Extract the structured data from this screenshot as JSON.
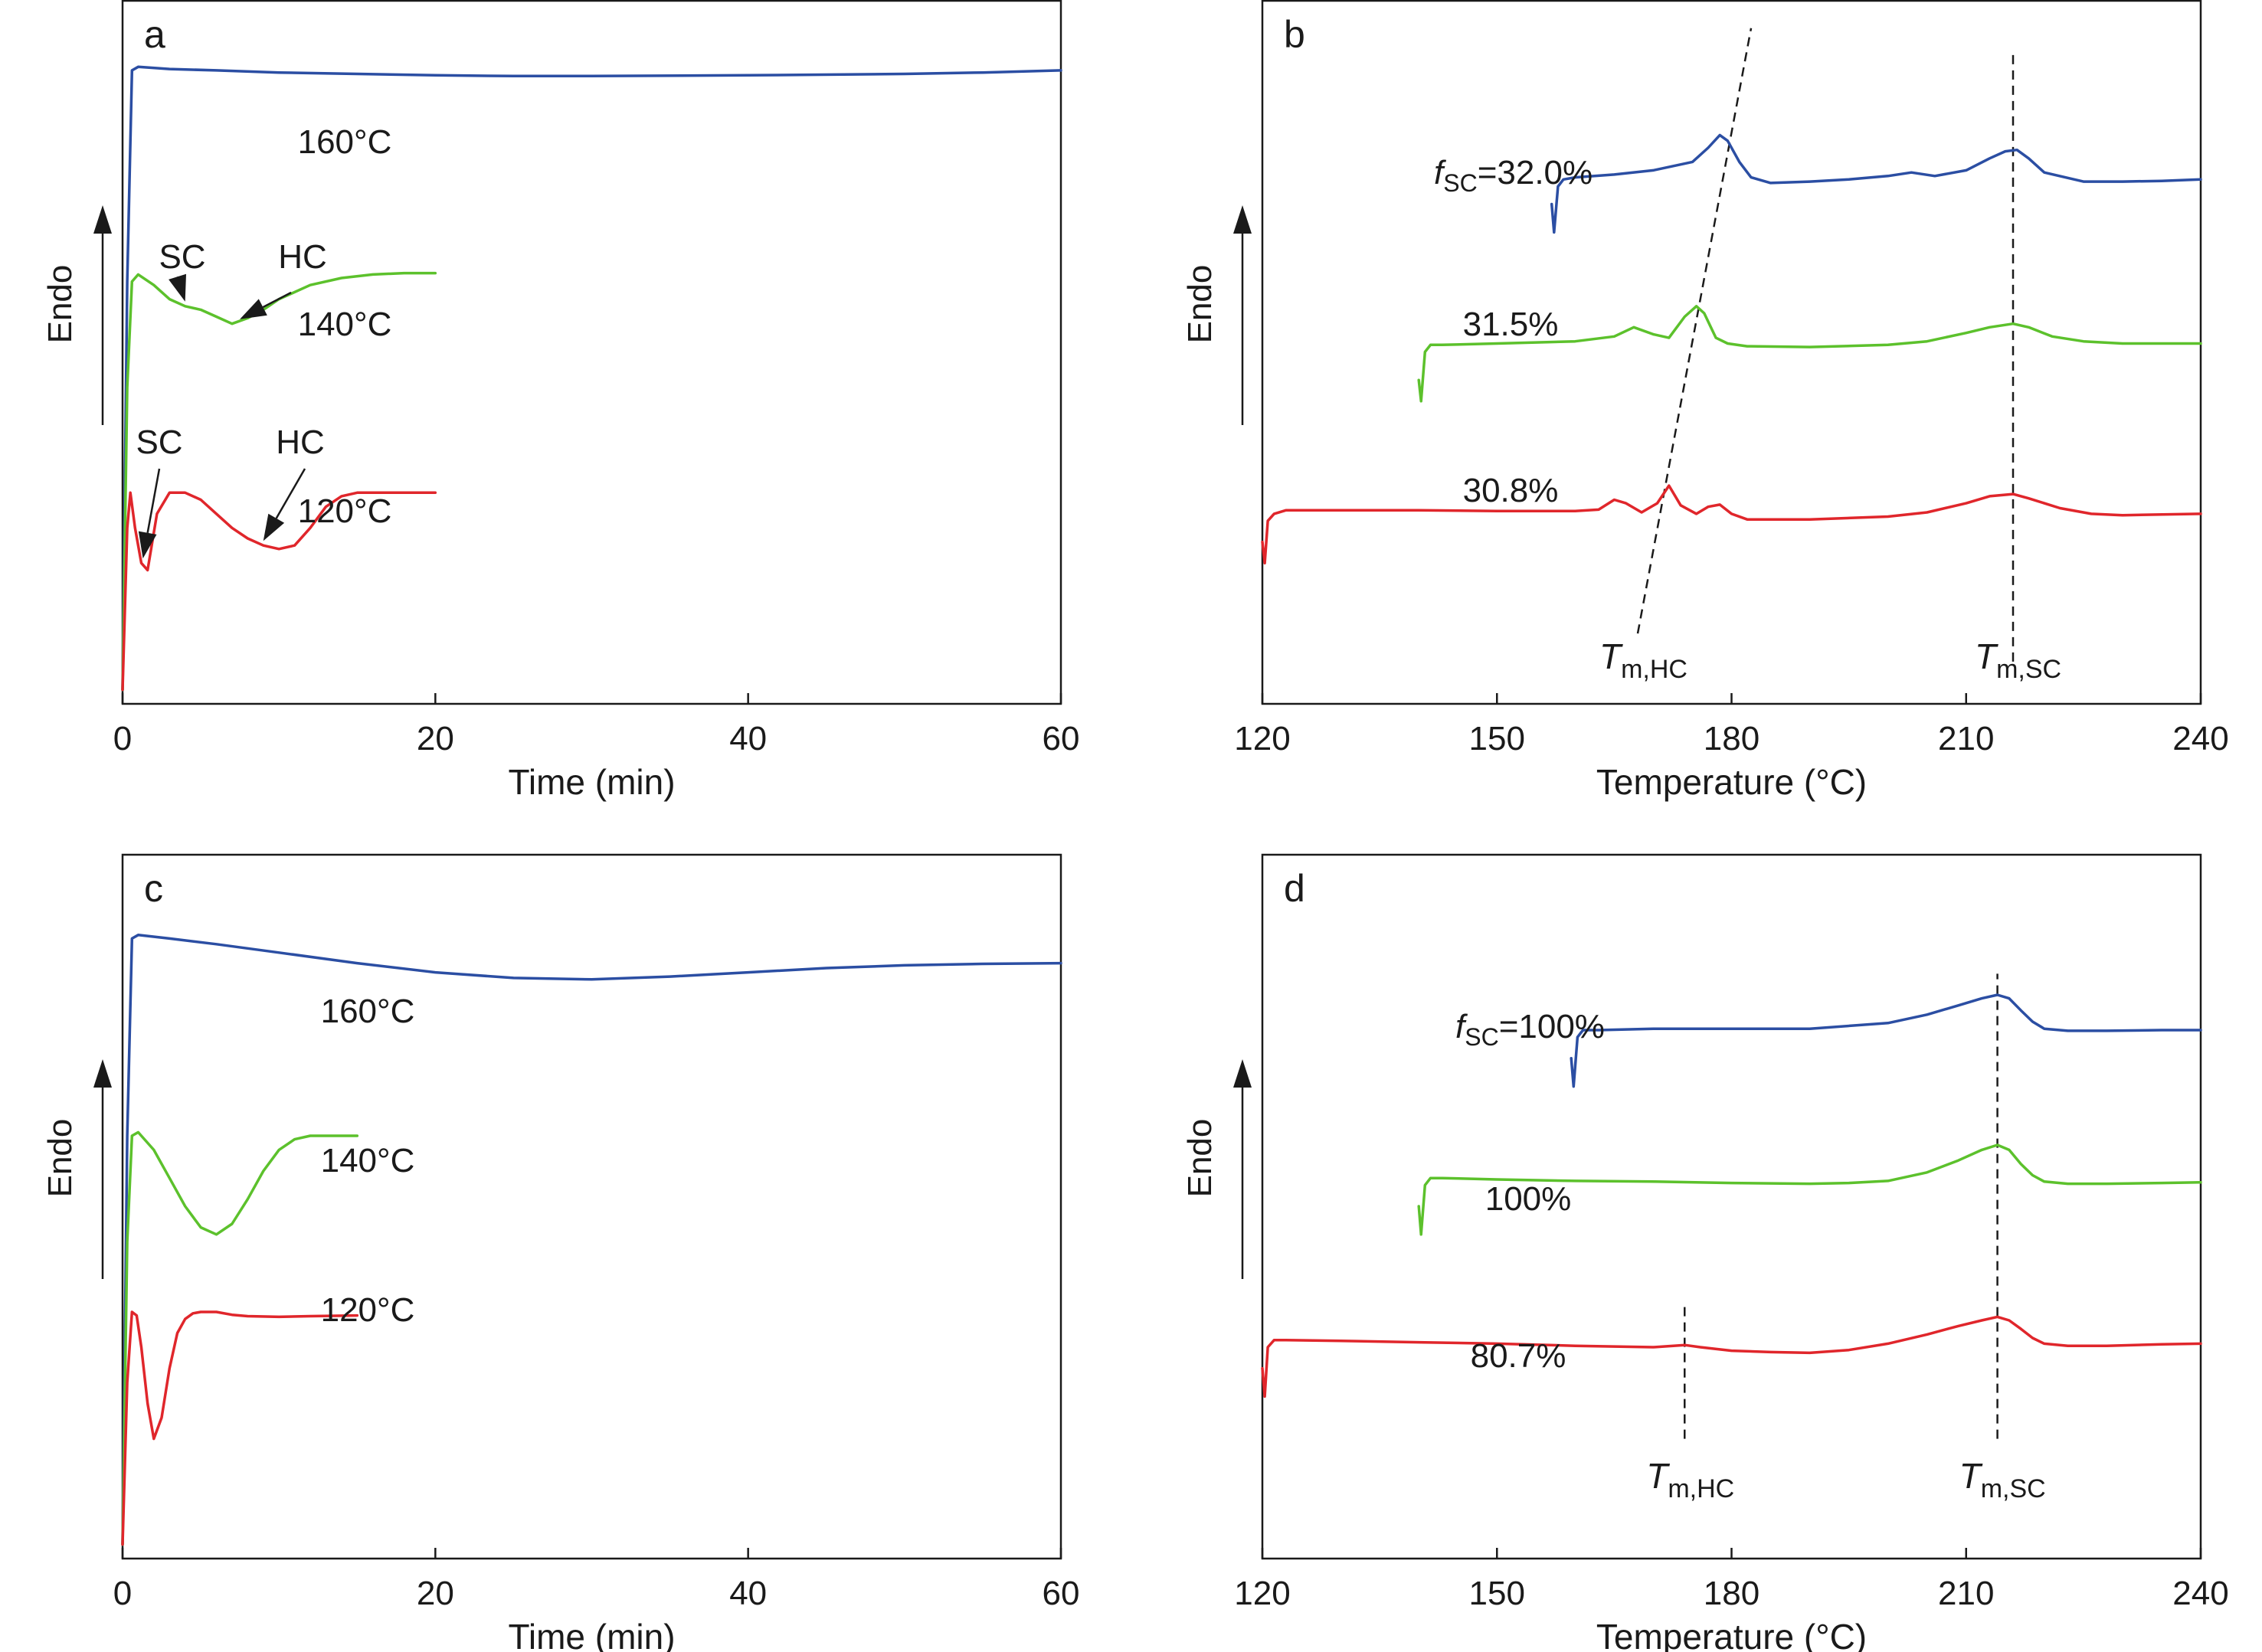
{
  "chart_data": [
    {
      "panel": "a",
      "type": "line",
      "xlabel": "Time (min)",
      "ylabel": "Endo",
      "xlim": [
        0,
        60
      ],
      "xticks": [
        "0",
        "20",
        "40",
        "60"
      ],
      "series": [
        {
          "name": "160°C",
          "label": "160°C",
          "color": "#2b4ea3",
          "x": [
            0,
            0.3,
            0.6,
            1,
            3,
            6,
            10,
            15,
            20,
            25,
            30,
            40,
            50,
            55,
            60
          ],
          "y": [
            0.02,
            0.6,
            0.9,
            0.905,
            0.902,
            0.9,
            0.897,
            0.895,
            0.893,
            0.892,
            0.892,
            0.893,
            0.895,
            0.897,
            0.9
          ]
        },
        {
          "name": "140°C",
          "label": "140°C",
          "color": "#5cc12c",
          "x": [
            0,
            0.3,
            0.6,
            1,
            2,
            3,
            4,
            5,
            6,
            7,
            8,
            9,
            10,
            12,
            14,
            16,
            18,
            20
          ],
          "y": [
            0.02,
            0.45,
            0.6,
            0.61,
            0.595,
            0.575,
            0.565,
            0.56,
            0.55,
            0.54,
            0.548,
            0.56,
            0.575,
            0.595,
            0.605,
            0.61,
            0.612,
            0.612
          ]
        },
        {
          "name": "120°C",
          "label": "120°C",
          "color": "#e0262b",
          "x": [
            0,
            0.3,
            0.5,
            0.8,
            1.2,
            1.6,
            2.2,
            3,
            4,
            5,
            6,
            7,
            8,
            9,
            10,
            11,
            12,
            13,
            14,
            15,
            17,
            20
          ],
          "y": [
            0.02,
            0.25,
            0.3,
            0.25,
            0.2,
            0.19,
            0.27,
            0.3,
            0.3,
            0.29,
            0.27,
            0.25,
            0.235,
            0.225,
            0.22,
            0.225,
            0.25,
            0.28,
            0.295,
            0.3,
            0.3,
            0.3
          ]
        }
      ],
      "annotations": [
        {
          "text": "SC",
          "x": 4,
          "y": 0.565
        },
        {
          "text": "HC",
          "x": 7.5,
          "y": 0.54
        },
        {
          "text": "SC",
          "x": 1.3,
          "y": 0.2
        },
        {
          "text": "HC",
          "x": 9,
          "y": 0.225
        }
      ]
    },
    {
      "panel": "b",
      "type": "line",
      "xlabel": "Temperature (°C)",
      "ylabel": "Endo",
      "xlim": [
        120,
        240
      ],
      "xticks": [
        "120",
        "150",
        "180",
        "210",
        "240"
      ],
      "series": [
        {
          "name": "32.0%",
          "label_prefix": "f",
          "label_sub": "SC",
          "label": "=32.0%",
          "color": "#2b4ea3",
          "x": [
            157,
            157.3,
            157.8,
            158.5,
            160,
            165,
            170,
            175,
            177,
            178.5,
            179.5,
            181,
            182.5,
            185,
            190,
            195,
            200,
            203,
            206,
            210,
            213,
            215,
            216.5,
            218,
            220,
            225,
            230,
            235,
            240
          ],
          "y": [
            0.71,
            0.67,
            0.735,
            0.745,
            0.748,
            0.752,
            0.758,
            0.77,
            0.79,
            0.808,
            0.8,
            0.77,
            0.748,
            0.74,
            0.742,
            0.745,
            0.75,
            0.755,
            0.75,
            0.758,
            0.775,
            0.785,
            0.787,
            0.775,
            0.755,
            0.742,
            0.742,
            0.743,
            0.745
          ]
        },
        {
          "name": "31.5%",
          "label": "31.5%",
          "color": "#5cc12c",
          "x": [
            140,
            140.3,
            140.8,
            141.5,
            143,
            150,
            160,
            165,
            167.5,
            170,
            172,
            174,
            175.5,
            176.5,
            178,
            179.5,
            182,
            190,
            200,
            205,
            210,
            213,
            216,
            218,
            221,
            225,
            230,
            240
          ],
          "y": [
            0.46,
            0.43,
            0.5,
            0.51,
            0.51,
            0.512,
            0.515,
            0.522,
            0.535,
            0.525,
            0.52,
            0.55,
            0.565,
            0.555,
            0.52,
            0.512,
            0.508,
            0.507,
            0.51,
            0.515,
            0.527,
            0.535,
            0.54,
            0.535,
            0.522,
            0.515,
            0.512,
            0.512
          ]
        },
        {
          "name": "30.8%",
          "label": "30.8%",
          "color": "#e0262b",
          "x": [
            120,
            120.3,
            120.7,
            121.5,
            123,
            130,
            140,
            150,
            160,
            163,
            165,
            166.5,
            168.5,
            170.5,
            172,
            173.5,
            175.5,
            177,
            178.5,
            180,
            182,
            190,
            200,
            205,
            210,
            213,
            216,
            218,
            222,
            226,
            230,
            240
          ],
          "y": [
            0.23,
            0.2,
            0.26,
            0.27,
            0.275,
            0.275,
            0.275,
            0.274,
            0.274,
            0.276,
            0.29,
            0.285,
            0.272,
            0.285,
            0.31,
            0.282,
            0.27,
            0.28,
            0.283,
            0.27,
            0.262,
            0.262,
            0.266,
            0.272,
            0.285,
            0.295,
            0.298,
            0.292,
            0.278,
            0.27,
            0.268,
            0.27
          ]
        }
      ],
      "guides": [
        {
          "kind": "dashed-line",
          "x1": 168,
          "y1": 0.1,
          "x2": 182.5,
          "y2": 0.96
        },
        {
          "kind": "dashed-line",
          "x1": 216,
          "y1": 0.06,
          "x2": 216,
          "y2": 0.93
        }
      ],
      "annotations": [
        {
          "main": "T",
          "sub": "m,HC",
          "x": 168,
          "y": 0.05
        },
        {
          "main": "T",
          "sub": "m,SC",
          "x": 216,
          "y": 0.05
        }
      ]
    },
    {
      "panel": "c",
      "type": "line",
      "xlabel": "Time (min)",
      "ylabel": "Endo",
      "xlim": [
        0,
        60
      ],
      "xticks": [
        "0",
        "20",
        "40",
        "60"
      ],
      "series": [
        {
          "name": "160°C",
          "label": "160°C",
          "color": "#2b4ea3",
          "x": [
            0,
            0.3,
            0.6,
            1,
            3,
            6,
            10,
            15,
            20,
            25,
            30,
            35,
            40,
            45,
            50,
            55,
            60
          ],
          "y": [
            0.02,
            0.6,
            0.88,
            0.885,
            0.88,
            0.872,
            0.86,
            0.845,
            0.832,
            0.824,
            0.822,
            0.826,
            0.832,
            0.838,
            0.842,
            0.844,
            0.845
          ]
        },
        {
          "name": "140°C",
          "label": "140°C",
          "color": "#5cc12c",
          "x": [
            0,
            0.3,
            0.6,
            1,
            2,
            3,
            4,
            5,
            6,
            7,
            8,
            9,
            10,
            11,
            12,
            13,
            14,
            15
          ],
          "y": [
            0.02,
            0.45,
            0.6,
            0.605,
            0.58,
            0.54,
            0.5,
            0.47,
            0.46,
            0.475,
            0.51,
            0.55,
            0.58,
            0.595,
            0.6,
            0.6,
            0.6,
            0.6
          ]
        },
        {
          "name": "120°C",
          "label": "120°C",
          "color": "#e0262b",
          "x": [
            0,
            0.3,
            0.6,
            0.9,
            1.2,
            1.6,
            2,
            2.5,
            3,
            3.5,
            4,
            4.5,
            5,
            6,
            7,
            8,
            10,
            12,
            15
          ],
          "y": [
            0.02,
            0.25,
            0.35,
            0.345,
            0.3,
            0.22,
            0.17,
            0.2,
            0.27,
            0.32,
            0.34,
            0.348,
            0.35,
            0.35,
            0.346,
            0.344,
            0.343,
            0.344,
            0.345
          ]
        }
      ],
      "annotations": []
    },
    {
      "panel": "d",
      "type": "line",
      "xlabel": "Temperature (°C)",
      "ylabel": "Endo",
      "xlim": [
        120,
        240
      ],
      "xticks": [
        "120",
        "150",
        "180",
        "210",
        "240"
      ],
      "series": [
        {
          "name": "100%",
          "label_prefix": "f",
          "label_sub": "SC",
          "label": "=100%",
          "color": "#2b4ea3",
          "x": [
            159.5,
            159.8,
            160.3,
            161,
            163,
            170,
            180,
            190,
            200,
            205,
            209,
            212,
            214,
            215.5,
            217,
            218.5,
            220,
            223,
            228,
            235,
            240
          ],
          "y": [
            0.71,
            0.67,
            0.74,
            0.75,
            0.75,
            0.752,
            0.752,
            0.752,
            0.76,
            0.772,
            0.785,
            0.795,
            0.8,
            0.795,
            0.778,
            0.762,
            0.752,
            0.749,
            0.749,
            0.75,
            0.75
          ]
        },
        {
          "name": "100%",
          "label": "100%",
          "color": "#5cc12c",
          "x": [
            140,
            140.3,
            140.8,
            141.5,
            143,
            150,
            160,
            170,
            180,
            190,
            195,
            200,
            205,
            209,
            212,
            214,
            215.5,
            217,
            218.5,
            220,
            223,
            228,
            235,
            240
          ],
          "y": [
            0.5,
            0.46,
            0.53,
            0.54,
            0.54,
            0.538,
            0.536,
            0.535,
            0.533,
            0.532,
            0.533,
            0.536,
            0.548,
            0.565,
            0.58,
            0.587,
            0.58,
            0.56,
            0.544,
            0.535,
            0.532,
            0.532,
            0.533,
            0.534
          ]
        },
        {
          "name": "80.7%",
          "label": "80.7%",
          "color": "#e0262b",
          "x": [
            120,
            120.3,
            120.7,
            121.5,
            123,
            130,
            140,
            150,
            160,
            170,
            174,
            176,
            180,
            185,
            190,
            195,
            200,
            205,
            209,
            212,
            214,
            215.5,
            217,
            218.5,
            220,
            223,
            228,
            235,
            240
          ],
          "y": [
            0.27,
            0.23,
            0.3,
            0.31,
            0.31,
            0.309,
            0.307,
            0.305,
            0.302,
            0.3,
            0.303,
            0.3,
            0.295,
            0.293,
            0.292,
            0.296,
            0.305,
            0.318,
            0.33,
            0.338,
            0.343,
            0.338,
            0.326,
            0.313,
            0.305,
            0.302,
            0.302,
            0.304,
            0.305
          ]
        }
      ],
      "guides": [
        {
          "kind": "dashed-line",
          "x1": 174,
          "y1": 0.17,
          "x2": 174,
          "y2": 0.36
        },
        {
          "kind": "dashed-line",
          "x1": 214,
          "y1": 0.17,
          "x2": 214,
          "y2": 0.83
        }
      ],
      "annotations": [
        {
          "main": "T",
          "sub": "m,HC",
          "x": 174,
          "y": 0.1
        },
        {
          "main": "T",
          "sub": "m,SC",
          "x": 214,
          "y": 0.1
        }
      ]
    }
  ]
}
